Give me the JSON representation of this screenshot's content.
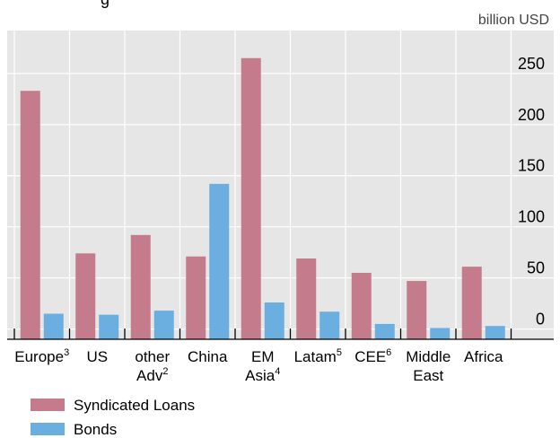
{
  "chart_data": {
    "type": "bar",
    "title_fragment": "g",
    "unit": "billion USD",
    "categories": [
      {
        "lines": [
          {
            "text": "Europe",
            "sup": "3"
          }
        ]
      },
      {
        "lines": [
          {
            "text": "US",
            "sup": ""
          }
        ]
      },
      {
        "lines": [
          {
            "text": "other",
            "sup": ""
          },
          {
            "text": "Adv",
            "sup": "2"
          }
        ]
      },
      {
        "lines": [
          {
            "text": "China",
            "sup": ""
          }
        ]
      },
      {
        "lines": [
          {
            "text": "EM",
            "sup": ""
          },
          {
            "text": "Asia",
            "sup": "4"
          }
        ]
      },
      {
        "lines": [
          {
            "text": "Latam",
            "sup": "5"
          }
        ]
      },
      {
        "lines": [
          {
            "text": "CEE",
            "sup": "6"
          }
        ]
      },
      {
        "lines": [
          {
            "text": "Middle",
            "sup": ""
          },
          {
            "text": "East",
            "sup": ""
          }
        ]
      },
      {
        "lines": [
          {
            "text": "Africa",
            "sup": ""
          }
        ]
      }
    ],
    "series": [
      {
        "name": "Syndicated Loans",
        "color": "#c47b8b",
        "values": [
          233,
          74,
          92,
          71,
          265,
          69,
          55,
          47,
          61
        ]
      },
      {
        "name": "Bonds",
        "color": "#6baee0",
        "values": [
          15,
          14,
          18,
          142,
          26,
          17,
          5,
          1,
          3
        ]
      }
    ],
    "yticks": [
      0,
      50,
      100,
      150,
      200,
      250
    ],
    "ylim": [
      -10,
      292
    ],
    "y_axis_position": "right",
    "grid": true,
    "legend_position": "bottom-left"
  }
}
